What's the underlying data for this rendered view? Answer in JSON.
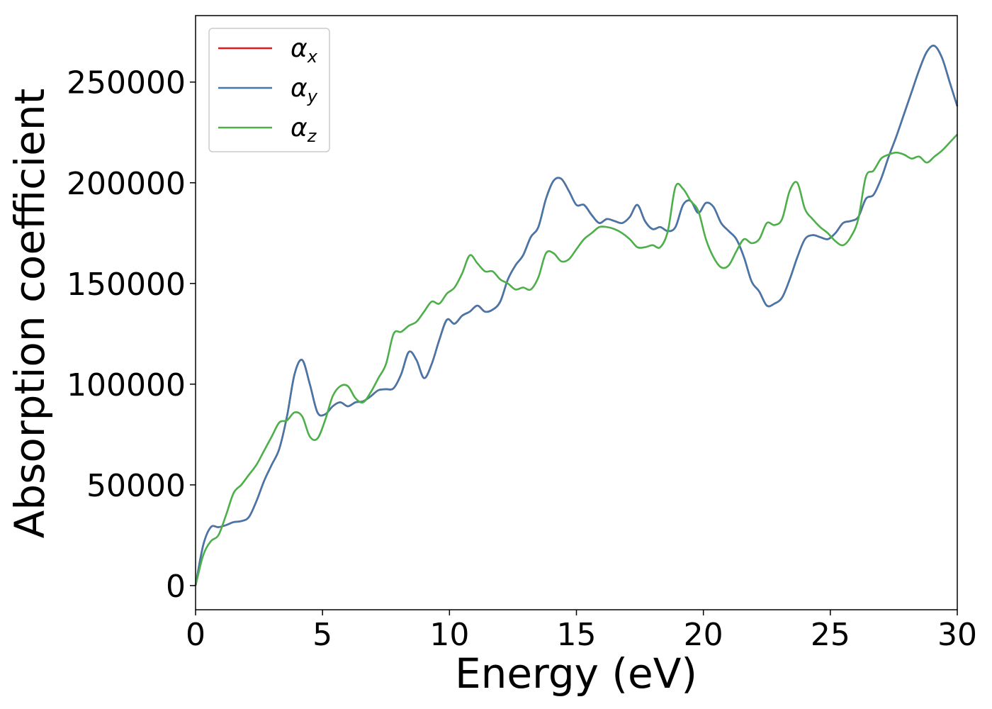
{
  "chart_data": {
    "type": "line",
    "xlabel": "Energy (eV)",
    "ylabel": "Absorption coefficient",
    "xlim": [
      0,
      30
    ],
    "ylim": [
      -12000,
      283000
    ],
    "xticks": [
      0,
      5,
      10,
      15,
      20,
      25,
      30
    ],
    "xtick_labels": [
      "0",
      "5",
      "10",
      "15",
      "20",
      "25",
      "30"
    ],
    "yticks": [
      0,
      50000,
      100000,
      150000,
      200000,
      250000
    ],
    "ytick_labels": [
      "0",
      "50000",
      "100000",
      "150000",
      "200000",
      "250000"
    ],
    "grid": false,
    "legend_position": "top-left",
    "series": [
      {
        "name": "α",
        "subscript": "x",
        "color": "#e41a1c",
        "x": [
          0,
          0.3,
          0.6,
          0.9,
          1.2,
          1.5,
          1.8,
          2.1,
          2.4,
          2.7,
          3.0,
          3.3,
          3.6,
          3.9,
          4.2,
          4.5,
          4.8,
          5.1,
          5.4,
          5.7,
          6.0,
          6.3,
          6.6,
          6.9,
          7.2,
          7.5,
          7.8,
          8.1,
          8.4,
          8.7,
          9.0,
          9.3,
          9.6,
          9.9,
          10.2,
          10.5,
          10.8,
          11.1,
          11.4,
          11.7,
          12.0,
          12.3,
          12.6,
          12.9,
          13.2,
          13.5,
          13.8,
          14.1,
          14.4,
          14.7,
          15.0,
          15.3,
          15.6,
          15.9,
          16.2,
          16.5,
          16.8,
          17.1,
          17.4,
          17.7,
          18.0,
          18.3,
          18.6,
          18.9,
          19.2,
          19.5,
          19.8,
          20.1,
          20.4,
          20.7,
          21.0,
          21.3,
          21.6,
          21.9,
          22.2,
          22.5,
          22.8,
          23.1,
          23.4,
          23.7,
          24.0,
          24.3,
          24.6,
          24.9,
          25.2,
          25.5,
          25.8,
          26.1,
          26.4,
          26.7,
          27.0,
          27.3,
          27.6,
          27.9,
          28.2,
          28.5,
          28.8,
          29.1,
          29.4,
          29.7,
          30.0
        ],
        "y": [
          0,
          20000,
          29000,
          29000,
          30000,
          31500,
          32000,
          34000,
          42000,
          52000,
          60000,
          68000,
          84000,
          105000,
          112000,
          100000,
          86000,
          85000,
          89000,
          91000,
          89000,
          91000,
          91500,
          94000,
          97000,
          97500,
          98000,
          105000,
          116000,
          112000,
          103000,
          110000,
          122000,
          132000,
          130000,
          134000,
          136000,
          139000,
          136000,
          137000,
          141000,
          152000,
          159000,
          164000,
          173000,
          178000,
          192000,
          201000,
          202000,
          196000,
          189000,
          189000,
          184000,
          180000,
          182000,
          181000,
          180000,
          183000,
          189000,
          181000,
          177000,
          178000,
          176000,
          178000,
          189000,
          191000,
          185000,
          190000,
          188000,
          180000,
          176000,
          172000,
          163000,
          151000,
          146000,
          139000,
          140000,
          143000,
          152000,
          163000,
          172000,
          174000,
          173000,
          172000,
          175000,
          180000,
          181000,
          183000,
          192000,
          194000,
          202000,
          213000,
          223000,
          234000,
          245000,
          256000,
          265000,
          268000,
          262000,
          250000,
          238000
        ]
      },
      {
        "name": "α",
        "subscript": "y",
        "color": "#4477aa",
        "x": [
          0,
          0.3,
          0.6,
          0.9,
          1.2,
          1.5,
          1.8,
          2.1,
          2.4,
          2.7,
          3.0,
          3.3,
          3.6,
          3.9,
          4.2,
          4.5,
          4.8,
          5.1,
          5.4,
          5.7,
          6.0,
          6.3,
          6.6,
          6.9,
          7.2,
          7.5,
          7.8,
          8.1,
          8.4,
          8.7,
          9.0,
          9.3,
          9.6,
          9.9,
          10.2,
          10.5,
          10.8,
          11.1,
          11.4,
          11.7,
          12.0,
          12.3,
          12.6,
          12.9,
          13.2,
          13.5,
          13.8,
          14.1,
          14.4,
          14.7,
          15.0,
          15.3,
          15.6,
          15.9,
          16.2,
          16.5,
          16.8,
          17.1,
          17.4,
          17.7,
          18.0,
          18.3,
          18.6,
          18.9,
          19.2,
          19.5,
          19.8,
          20.1,
          20.4,
          20.7,
          21.0,
          21.3,
          21.6,
          21.9,
          22.2,
          22.5,
          22.8,
          23.1,
          23.4,
          23.7,
          24.0,
          24.3,
          24.6,
          24.9,
          25.2,
          25.5,
          25.8,
          26.1,
          26.4,
          26.7,
          27.0,
          27.3,
          27.6,
          27.9,
          28.2,
          28.5,
          28.8,
          29.1,
          29.4,
          29.7,
          30.0
        ],
        "y": [
          0,
          20000,
          29000,
          29000,
          30000,
          31500,
          32000,
          34000,
          42000,
          52000,
          60000,
          68000,
          84000,
          105000,
          112000,
          100000,
          86000,
          85000,
          89000,
          91000,
          89000,
          91000,
          91500,
          94000,
          97000,
          97500,
          98000,
          105000,
          116000,
          112000,
          103000,
          110000,
          122000,
          132000,
          130000,
          134000,
          136000,
          139000,
          136000,
          137000,
          141000,
          152000,
          159000,
          164000,
          173000,
          178000,
          192000,
          201000,
          202000,
          196000,
          189000,
          189000,
          184000,
          180000,
          182000,
          181000,
          180000,
          183000,
          189000,
          181000,
          177000,
          178000,
          176000,
          178000,
          189000,
          191000,
          185000,
          190000,
          188000,
          180000,
          176000,
          172000,
          163000,
          151000,
          146000,
          139000,
          140000,
          143000,
          152000,
          163000,
          172000,
          174000,
          173000,
          172000,
          175000,
          180000,
          181000,
          183000,
          192000,
          194000,
          202000,
          213000,
          223000,
          234000,
          245000,
          256000,
          265000,
          268000,
          262000,
          250000,
          238000
        ]
      },
      {
        "name": "α",
        "subscript": "z",
        "color": "#4daf4a",
        "x": [
          0,
          0.3,
          0.6,
          0.9,
          1.2,
          1.5,
          1.8,
          2.1,
          2.4,
          2.7,
          3.0,
          3.3,
          3.6,
          3.9,
          4.2,
          4.5,
          4.8,
          5.1,
          5.4,
          5.7,
          6.0,
          6.3,
          6.6,
          6.9,
          7.2,
          7.5,
          7.8,
          8.1,
          8.4,
          8.7,
          9.0,
          9.3,
          9.6,
          9.9,
          10.2,
          10.5,
          10.8,
          11.1,
          11.4,
          11.7,
          12.0,
          12.3,
          12.6,
          12.9,
          13.2,
          13.5,
          13.8,
          14.1,
          14.4,
          14.7,
          15.0,
          15.3,
          15.6,
          15.9,
          16.2,
          16.5,
          16.8,
          17.1,
          17.4,
          17.7,
          18.0,
          18.3,
          18.6,
          18.9,
          19.2,
          19.5,
          19.8,
          20.1,
          20.4,
          20.7,
          21.0,
          21.3,
          21.6,
          21.9,
          22.2,
          22.5,
          22.8,
          23.1,
          23.4,
          23.7,
          24.0,
          24.3,
          24.6,
          24.9,
          25.2,
          25.5,
          25.8,
          26.1,
          26.4,
          26.7,
          27.0,
          27.3,
          27.6,
          27.9,
          28.2,
          28.5,
          28.8,
          29.1,
          29.4,
          29.7,
          30.0
        ],
        "y": [
          0,
          15000,
          22000,
          25000,
          35000,
          46000,
          50000,
          55000,
          60000,
          67000,
          74000,
          81000,
          82000,
          86000,
          84000,
          74000,
          73000,
          82000,
          94000,
          99000,
          99000,
          93000,
          91000,
          96000,
          103000,
          110000,
          125000,
          126000,
          129000,
          131000,
          136000,
          141000,
          140000,
          145000,
          148000,
          155000,
          164000,
          160000,
          156000,
          156000,
          152000,
          150000,
          147000,
          148000,
          147000,
          153000,
          165000,
          165000,
          161000,
          162000,
          167000,
          172000,
          175000,
          178000,
          178000,
          177000,
          175000,
          172000,
          168000,
          168000,
          169000,
          168000,
          176000,
          198000,
          197000,
          191000,
          186000,
          172000,
          163000,
          158000,
          159000,
          166000,
          172000,
          170000,
          172000,
          180000,
          179000,
          182000,
          196000,
          200000,
          187000,
          182000,
          178000,
          175000,
          171000,
          169000,
          173000,
          182000,
          203000,
          206000,
          212000,
          214000,
          215000,
          214000,
          212000,
          213000,
          210000,
          213000,
          216000,
          220000,
          224000
        ]
      }
    ]
  }
}
